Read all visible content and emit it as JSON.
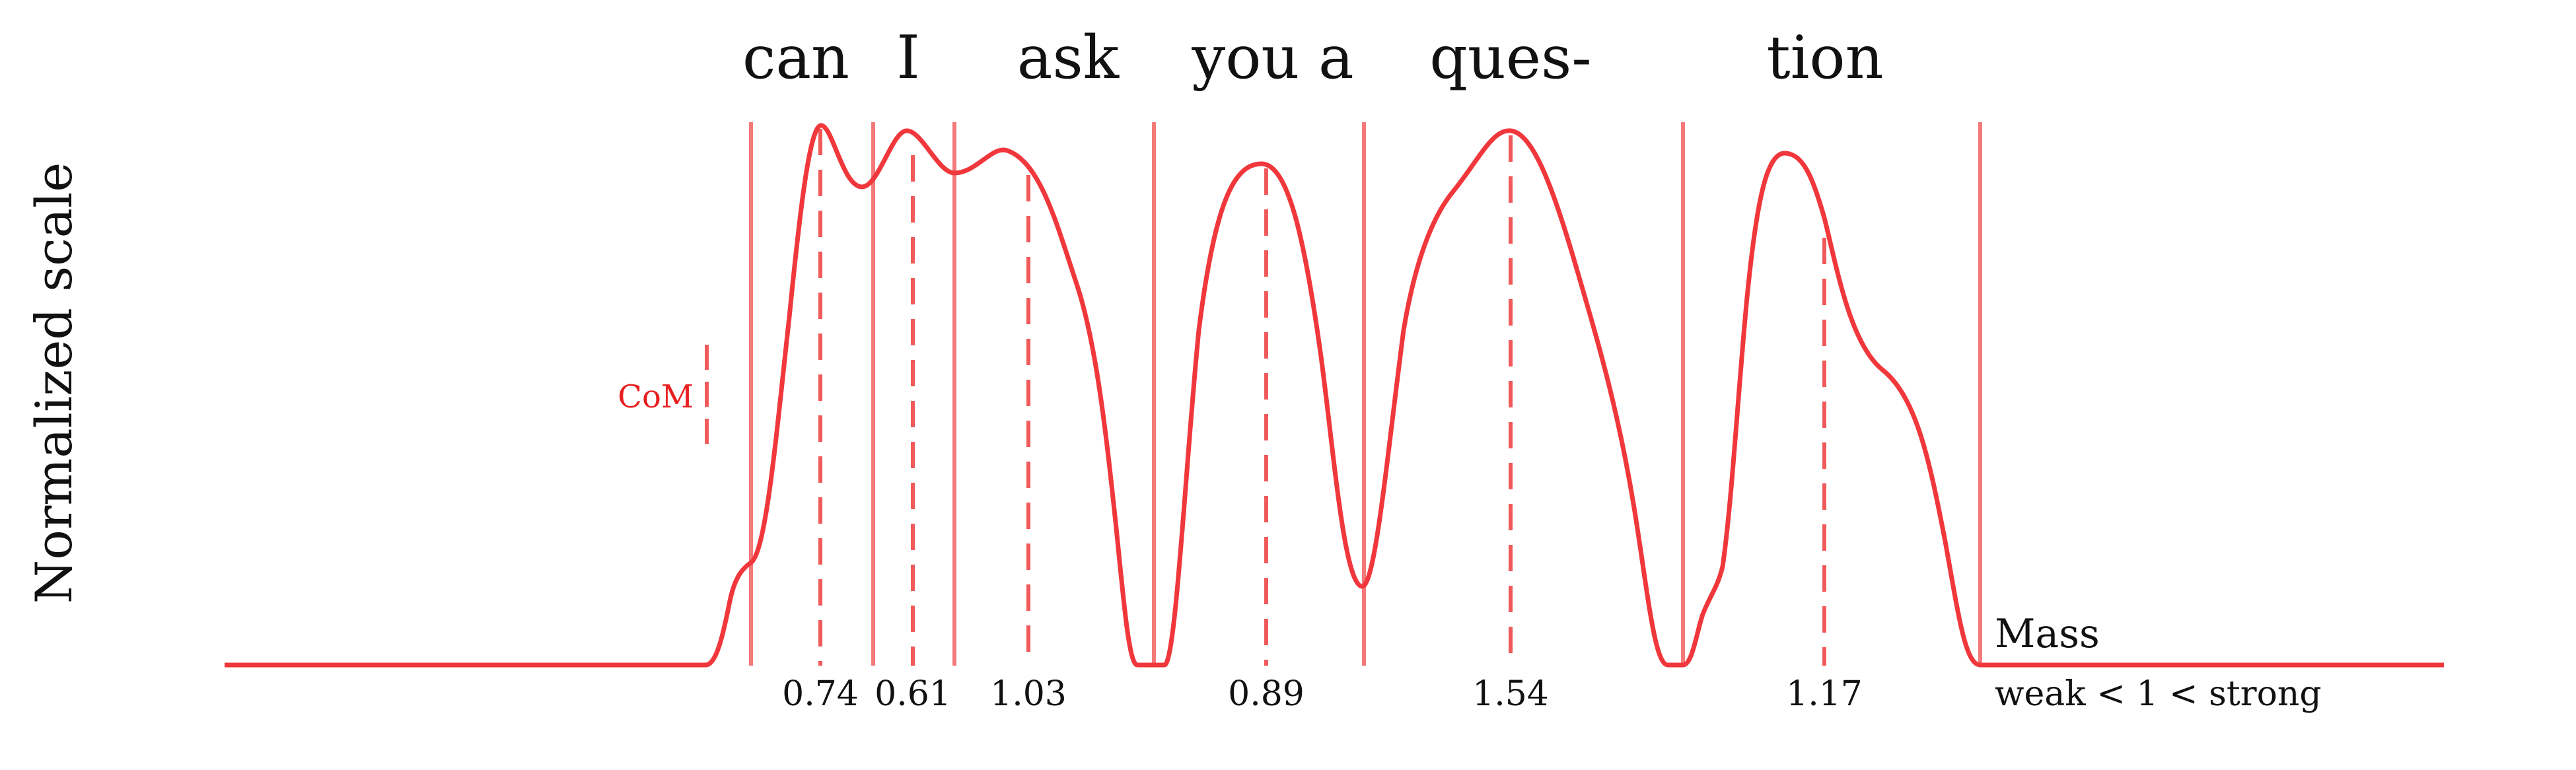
{
  "ylabel": "Normalized scale",
  "words": [
    "can",
    "I",
    "ask",
    "you a",
    "ques-",
    "tion"
  ],
  "com_label": "CoM",
  "mass_label": "Mass",
  "mass_scale": "weak < 1 < strong",
  "mass_values": [
    "0.74",
    "0.61",
    "1.03",
    "0.89",
    "1.54",
    "1.17"
  ],
  "colors": {
    "curve": "#f0383c",
    "boundary": "#f47a7a",
    "com_dash": "#f05a5a",
    "com_text": "#e81f1f",
    "text": "#111111"
  }
}
